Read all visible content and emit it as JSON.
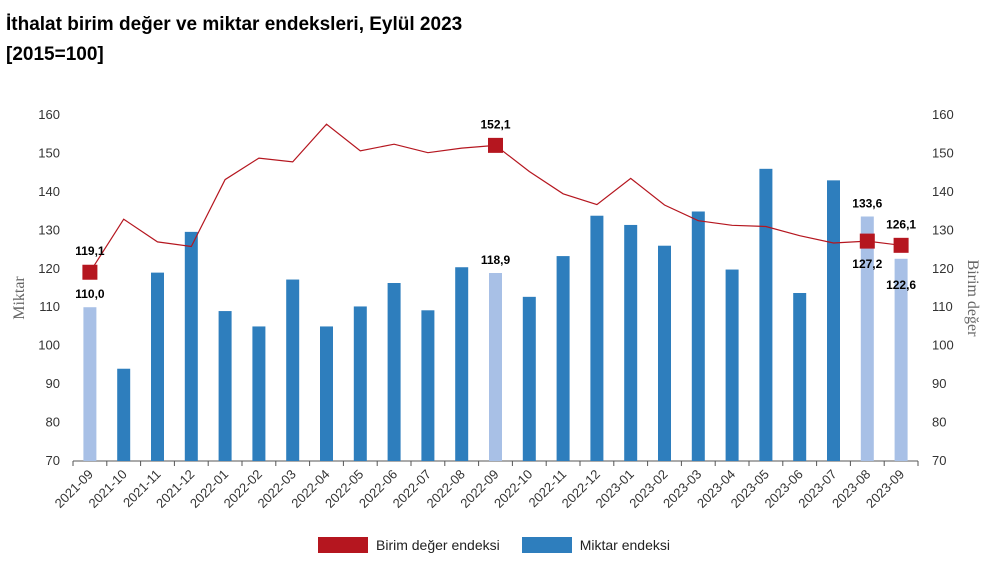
{
  "header": {
    "title": "İthalat birim değer ve miktar endeksleri, Eylül 2023",
    "subtitle": "[2015=100]"
  },
  "legend": {
    "line_label": "Birim değer endeksi",
    "bar_label": "Miktar endeksi"
  },
  "colors": {
    "bar": "#2e7ebd",
    "bar_highlight": "#a8c0e6",
    "line": "#b5161f",
    "marker": "#b5161f",
    "axis": "#555555"
  },
  "chart_data": {
    "type": "bar",
    "categories": [
      "2021-09",
      "2021-10",
      "2021-11",
      "2021-12",
      "2022-01",
      "2022-02",
      "2022-03",
      "2022-04",
      "2022-05",
      "2022-06",
      "2022-07",
      "2022-08",
      "2022-09",
      "2022-10",
      "2022-11",
      "2022-12",
      "2023-01",
      "2023-02",
      "2023-03",
      "2023-04",
      "2023-05",
      "2023-06",
      "2023-07",
      "2023-08",
      "2023-09"
    ],
    "series": [
      {
        "name": "Miktar endeksi",
        "type": "bar",
        "axis": "left",
        "values": [
          110.0,
          94.0,
          119.0,
          129.6,
          109.0,
          105.0,
          117.2,
          105.0,
          110.2,
          116.3,
          109.2,
          120.4,
          118.9,
          112.7,
          123.3,
          133.8,
          131.4,
          126.0,
          134.9,
          119.8,
          146.0,
          113.7,
          143.0,
          133.6,
          122.6
        ],
        "highlight": [
          true,
          false,
          false,
          false,
          false,
          false,
          false,
          false,
          false,
          false,
          false,
          false,
          true,
          false,
          false,
          false,
          false,
          false,
          false,
          false,
          false,
          false,
          false,
          true,
          true
        ]
      },
      {
        "name": "Birim değer endeksi",
        "type": "line",
        "axis": "right",
        "values": [
          119.1,
          132.9,
          127.0,
          125.8,
          143.2,
          148.8,
          147.8,
          157.6,
          150.7,
          152.4,
          150.2,
          151.4,
          152.1,
          145.3,
          139.5,
          136.7,
          143.5,
          136.6,
          132.5,
          131.3,
          131.0,
          128.6,
          126.7,
          127.2,
          126.1
        ],
        "markers": [
          0,
          12,
          23,
          24
        ]
      }
    ],
    "data_labels": [
      {
        "index": 0,
        "series": "line",
        "text": "119,1"
      },
      {
        "index": 0,
        "series": "bar",
        "text": "110,0"
      },
      {
        "index": 12,
        "series": "line",
        "text": "152,1"
      },
      {
        "index": 12,
        "series": "bar",
        "text": "118,9"
      },
      {
        "index": 23,
        "series": "bar",
        "text": "133,6"
      },
      {
        "index": 23,
        "series": "line",
        "text": "127,2"
      },
      {
        "index": 24,
        "series": "line",
        "text": "126,1"
      },
      {
        "index": 24,
        "series": "bar",
        "text": "122,6"
      }
    ],
    "ylabel": "Miktar",
    "y2label": "Birim değer",
    "ylim": [
      70,
      160
    ],
    "y2lim": [
      70,
      160
    ],
    "yticks": [
      70,
      80,
      90,
      100,
      110,
      120,
      130,
      140,
      150,
      160
    ],
    "grid": false,
    "legend_position": "bottom"
  }
}
